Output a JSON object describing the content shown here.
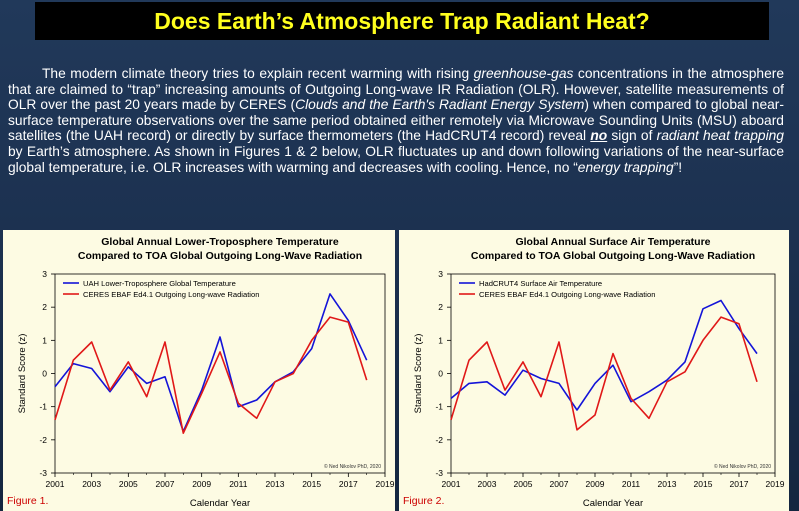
{
  "page": {
    "title": "Does Earth’s Atmosphere Trap Radiant Heat?"
  },
  "intro": {
    "s1": "The modern climate theory tries to explain recent warming with rising ",
    "e1": "greenhouse-gas",
    "s2": " concentrations in the atmosphere that are claimed to “trap” increasing amounts of Outgoing Long-wave IR Radiation (OLR). However, satellite measurements of OLR over the past 20 years made by CERES (",
    "e2": "Clouds and the Earth's Radiant Energy System",
    "s3": ") when compared to global near-surface temperature observations over the same period obtained either remotely via Microwave Sounding Units (MSU) aboard satellites (the UAH record) or directly by surface thermometers (the HadCRUT4 record) reveal ",
    "e3": "no",
    "s4": " sign of ",
    "e4": "radiant heat trapping",
    "s5": " by Earth’s atmosphere. As shown in Figures 1 & 2 below, OLR fluctuates up and down following variations of the near-surface global temperature, i.e. OLR increases with warming and decreases with cooling. Hence, no “",
    "e5": "energy trapping",
    "s6": "”!"
  },
  "chart_data": [
    {
      "type": "line",
      "title": "Global Annual Lower-Troposphere Temperature",
      "subtitle": "Compared to TOA Global Outgoing Long-Wave Radiation",
      "xlabel": "Calendar Year",
      "ylabel": "Standard Score (z)",
      "xlim": [
        2001,
        2019
      ],
      "ylim": [
        -3,
        3
      ],
      "xticks": [
        2001,
        2003,
        2005,
        2007,
        2009,
        2011,
        2013,
        2015,
        2017,
        2019
      ],
      "yticks": [
        -3,
        -2,
        -1,
        0,
        1,
        2,
        3
      ],
      "grid": false,
      "legend": "top-left",
      "credit": "© Ned Nikolov PhD, 2020",
      "figure_label": "Figure 1.",
      "x": [
        2001,
        2002,
        2003,
        2004,
        2005,
        2006,
        2007,
        2008,
        2009,
        2010,
        2011,
        2012,
        2013,
        2014,
        2015,
        2016,
        2017,
        2018
      ],
      "series": [
        {
          "name": "UAH Lower-Troposphere Global Temperature",
          "color": "#1414d8",
          "values": [
            -0.4,
            0.3,
            0.15,
            -0.55,
            0.2,
            -0.3,
            -0.1,
            -1.75,
            -0.5,
            1.1,
            -1.0,
            -0.8,
            -0.25,
            0.05,
            0.75,
            2.4,
            1.6,
            0.4
          ]
        },
        {
          "name": "CERES EBAF Ed4.1 Outgoing Long-wave Radiation",
          "color": "#e01818",
          "values": [
            -1.4,
            0.4,
            0.95,
            -0.5,
            0.35,
            -0.7,
            0.95,
            -1.8,
            -0.6,
            0.65,
            -0.9,
            -1.35,
            -0.25,
            0.0,
            1.0,
            1.7,
            1.55,
            -0.2
          ]
        }
      ]
    },
    {
      "type": "line",
      "title": "Global Annual Surface Air Temperature",
      "subtitle": "Compared to TOA Global Outgoing Long-Wave Radiation",
      "xlabel": "Calendar Year",
      "ylabel": "Standard Score (z)",
      "xlim": [
        2001,
        2019
      ],
      "ylim": [
        -3,
        3
      ],
      "xticks": [
        2001,
        2003,
        2005,
        2007,
        2009,
        2011,
        2013,
        2015,
        2017,
        2019
      ],
      "yticks": [
        -3,
        -2,
        -1,
        0,
        1,
        2,
        3
      ],
      "grid": false,
      "legend": "top-left",
      "credit": "© Ned Nikolov PhD, 2020",
      "figure_label": "Figure 2.",
      "x": [
        2001,
        2002,
        2003,
        2004,
        2005,
        2006,
        2007,
        2008,
        2009,
        2010,
        2011,
        2012,
        2013,
        2014,
        2015,
        2016,
        2017,
        2018
      ],
      "series": [
        {
          "name": "HadCRUT4 Surface Air Temperature",
          "color": "#1414d8",
          "values": [
            -0.75,
            -0.3,
            -0.25,
            -0.65,
            0.1,
            -0.15,
            -0.3,
            -1.1,
            -0.3,
            0.25,
            -0.85,
            -0.55,
            -0.2,
            0.35,
            1.95,
            2.2,
            1.35,
            0.6
          ]
        },
        {
          "name": "CERES EBAF Ed4.1 Outgoing Long-wave Radiation",
          "color": "#e01818",
          "values": [
            -1.4,
            0.4,
            0.95,
            -0.5,
            0.35,
            -0.7,
            0.95,
            -1.7,
            -1.25,
            0.6,
            -0.75,
            -1.35,
            -0.25,
            0.05,
            1.0,
            1.7,
            1.5,
            -0.25
          ]
        }
      ]
    }
  ]
}
